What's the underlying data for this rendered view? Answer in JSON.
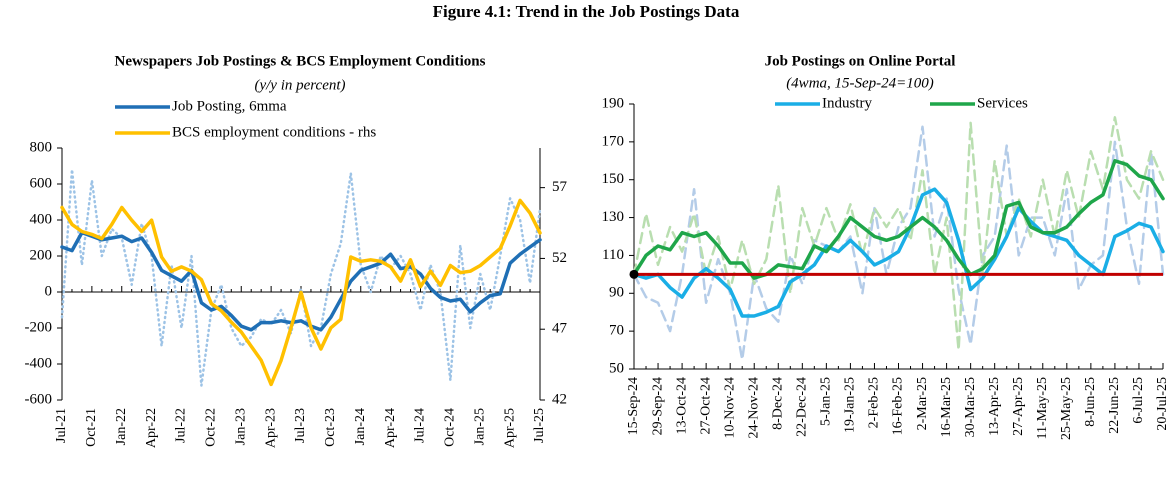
{
  "title": "Figure 4.1: Trend in the Job Postings Data",
  "chart_data": [
    {
      "type": "line",
      "title": "Newspapers Job Postings & BCS Employment Conditions",
      "subtitle": "(y/y in percent)",
      "categories": [
        "Jul-21",
        null,
        null,
        "Oct-21",
        null,
        null,
        "Jan-22",
        null,
        null,
        "Apr-22",
        null,
        null,
        "Jul-22",
        null,
        null,
        "Oct-22",
        null,
        null,
        "Jan-23",
        null,
        null,
        "Apr-23",
        null,
        null,
        "Jul-23",
        null,
        null,
        "Oct-23",
        null,
        null,
        "Jan-24",
        null,
        null,
        "Apr-24",
        null,
        null,
        "Jul-24",
        null,
        null,
        "Oct-24",
        null,
        null,
        "Jan-25",
        null,
        null,
        "Apr-25",
        null,
        null,
        "Jul-25"
      ],
      "series": [
        {
          "color": "#9dc3e6",
          "dash": "dotted",
          "values": [
            -140,
            680,
            150,
            620,
            200,
            350,
            300,
            40,
            380,
            200,
            -300,
            150,
            -200,
            200,
            -520,
            -100,
            40,
            -200,
            -300,
            -250,
            -150,
            -180,
            -100,
            -230,
            20,
            -300,
            -200,
            100,
            270,
            660,
            150,
            0,
            200,
            130,
            200,
            100,
            -100,
            150,
            0,
            -490,
            260,
            -200,
            100,
            -100,
            200,
            520,
            400,
            50,
            460
          ]
        },
        {
          "name": "Job Posting, 6mma",
          "color": "#1f6fb5",
          "values": [
            250,
            230,
            330,
            310,
            290,
            300,
            310,
            280,
            300,
            220,
            120,
            90,
            60,
            120,
            -60,
            -100,
            -80,
            -130,
            -190,
            -210,
            -170,
            -170,
            -160,
            -170,
            -160,
            -190,
            -210,
            -140,
            -40,
            60,
            120,
            140,
            160,
            210,
            130,
            140,
            100,
            20,
            -30,
            -50,
            -40,
            -110,
            -60,
            -20,
            -10,
            160,
            210,
            250,
            290
          ]
        },
        {
          "name": "BCS employment conditions - rhs",
          "color": "#ffc000",
          "axis": "y2",
          "values": [
            55.6,
            54.4,
            53.9,
            53.7,
            53.4,
            54.4,
            55.6,
            54.7,
            53.9,
            54.7,
            52.1,
            51.1,
            51.4,
            51.1,
            50.5,
            48.8,
            48.3,
            47.5,
            46.8,
            45.8,
            44.8,
            43.1,
            44.8,
            47.1,
            49.6,
            47.1,
            45.6,
            47.1,
            47.7,
            52.1,
            51.8,
            51.9,
            51.8,
            51.4,
            50.4,
            51.9,
            50.0,
            51.1,
            50.1,
            51.5,
            51.0,
            51.1,
            51.5,
            52.1,
            52.7,
            54.3,
            56.1,
            55.2,
            53.8
          ]
        }
      ],
      "ylim": [
        -600,
        800
      ],
      "yticks": [
        -600,
        -400,
        -200,
        0,
        200,
        400,
        600,
        800
      ],
      "y2lim": [
        42,
        59.8
      ],
      "y2ticks": [
        42,
        47,
        52,
        57
      ]
    },
    {
      "type": "line",
      "title": "Job Postings on Online Portal",
      "subtitle": "(4wma, 15-Sep-24=100)",
      "categories": [
        "15-Sep-24",
        null,
        "29-Sep-24",
        null,
        "13-Oct-24",
        null,
        "27-Oct-24",
        null,
        "10-Nov-24",
        null,
        "24-Nov-24",
        null,
        "8-Dec-24",
        null,
        "22-Dec-24",
        null,
        "5-Jan-25",
        null,
        "19-Jan-25",
        null,
        "2-Feb-25",
        null,
        "16-Feb-25",
        null,
        "2-Mar-25",
        null,
        "16-Mar-25",
        null,
        "30-Mar-25",
        null,
        "13-Apr-25",
        null,
        "27-Apr-25",
        null,
        "11-May-25",
        null,
        "25-May-25",
        null,
        "8-Jun-25",
        null,
        "22-Jun-25",
        null,
        "6-Jul-25",
        null,
        "20-Jul-25"
      ],
      "series": [
        {
          "color": "#b4cce8",
          "dash": "dashed",
          "values": [
            100,
            88,
            85,
            70,
            100,
            145,
            85,
            108,
            90,
            55,
            100,
            82,
            75,
            110,
            95,
            118,
            115,
            112,
            120,
            90,
            135,
            100,
            125,
            135,
            178,
            120,
            140,
            92,
            63,
            110,
            120,
            168,
            110,
            130,
            130,
            110,
            145,
            92,
            105,
            110,
            170,
            125,
            95,
            165,
            100
          ]
        },
        {
          "color": "#b9deb0",
          "dash": "dashed",
          "values": [
            100,
            132,
            105,
            125,
            112,
            132,
            100,
            120,
            92,
            118,
            95,
            108,
            147,
            90,
            135,
            115,
            135,
            118,
            137,
            110,
            135,
            125,
            135,
            118,
            155,
            100,
            130,
            60,
            180,
            100,
            160,
            120,
            140,
            120,
            150,
            120,
            155,
            130,
            165,
            145,
            183,
            150,
            140,
            165,
            150
          ]
        },
        {
          "name": "Industry",
          "color": "#1aaee6",
          "values": [
            100,
            98,
            100,
            93,
            88,
            98,
            103,
            98,
            92,
            78,
            78,
            80,
            83,
            96,
            100,
            105,
            115,
            112,
            118,
            112,
            105,
            108,
            112,
            125,
            142,
            145,
            138,
            118,
            92,
            98,
            108,
            120,
            135,
            128,
            122,
            120,
            118,
            110,
            105,
            100,
            120,
            123,
            127,
            125,
            112
          ]
        },
        {
          "name": "Services",
          "color": "#1fa64a",
          "values": [
            100,
            110,
            115,
            113,
            122,
            120,
            122,
            115,
            106,
            106,
            98,
            100,
            105,
            104,
            103,
            115,
            112,
            120,
            130,
            125,
            120,
            118,
            120,
            125,
            130,
            125,
            118,
            108,
            100,
            103,
            110,
            136,
            138,
            125,
            122,
            122,
            125,
            132,
            138,
            142,
            160,
            158,
            152,
            150,
            140
          ]
        }
      ],
      "hline": {
        "value": 100,
        "color": "#c00000"
      },
      "ylim": [
        50,
        190
      ],
      "yticks": [
        50,
        70,
        90,
        110,
        130,
        150,
        170,
        190
      ]
    }
  ]
}
